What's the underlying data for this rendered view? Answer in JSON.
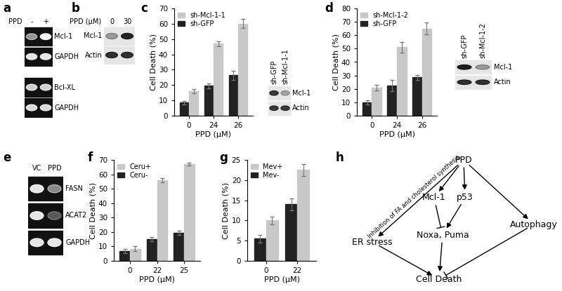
{
  "chart_data": [
    {
      "type": "bar",
      "panel_label": "c",
      "xlabel": "PPD (μM)",
      "ylabel": "Cell Death (%)",
      "categories": [
        "0",
        "24",
        "26"
      ],
      "series": [
        {
          "name": "sh-GFP",
          "color": "#222222",
          "values": [
            8.5,
            19.5,
            26.5
          ],
          "errors": [
            1,
            1.5,
            3
          ]
        },
        {
          "name": "sh-Mcl-1-1",
          "color": "#c8c8c8",
          "values": [
            16,
            47,
            60
          ],
          "errors": [
            1.5,
            1.5,
            3
          ]
        }
      ],
      "ylim": [
        0,
        70
      ],
      "yticks": [
        0,
        10,
        20,
        30,
        40,
        50,
        60,
        70
      ],
      "legend": "upper left"
    },
    {
      "type": "bar",
      "panel_label": "d",
      "xlabel": "PPD (μM)",
      "ylabel": "Cell Death (%)",
      "categories": [
        "0",
        "24",
        "26"
      ],
      "series": [
        {
          "name": "sh-GFP",
          "color": "#222222",
          "values": [
            10,
            22.5,
            28.5
          ],
          "errors": [
            1.5,
            4,
            2
          ]
        },
        {
          "name": "sh-Mcl-1-2",
          "color": "#c8c8c8",
          "values": [
            21,
            51,
            65
          ],
          "errors": [
            2,
            4,
            4.5
          ]
        }
      ],
      "ylim": [
        0,
        80
      ],
      "yticks": [
        0,
        10,
        20,
        30,
        40,
        50,
        60,
        70,
        80
      ],
      "legend": "upper left"
    },
    {
      "type": "bar",
      "panel_label": "f",
      "xlabel": "PPD (μM)",
      "ylabel": "Cell Death (%)",
      "categories": [
        "0",
        "22",
        "25"
      ],
      "series": [
        {
          "name": "Ceru-",
          "color": "#222222",
          "values": [
            7,
            15,
            19.5
          ],
          "errors": [
            1.5,
            1.5,
            1.5
          ]
        },
        {
          "name": "Ceru+",
          "color": "#c8c8c8",
          "values": [
            8.5,
            56,
            67
          ],
          "errors": [
            1.5,
            1.5,
            1
          ]
        }
      ],
      "ylim": [
        0,
        70
      ],
      "yticks": [
        0,
        10,
        20,
        30,
        40,
        50,
        60,
        70
      ],
      "legend": "upper left"
    },
    {
      "type": "bar",
      "panel_label": "g",
      "xlabel": "PPD (μM)",
      "ylabel": "Cell Death (%)",
      "categories": [
        "0",
        "22"
      ],
      "series": [
        {
          "name": "Mev-",
          "color": "#222222",
          "values": [
            5.5,
            14
          ],
          "errors": [
            1,
            1.5
          ]
        },
        {
          "name": "Mev+",
          "color": "#c8c8c8",
          "values": [
            10,
            22.5
          ],
          "errors": [
            1,
            1.5
          ]
        }
      ],
      "ylim": [
        0,
        25
      ],
      "yticks": [
        0,
        5,
        10,
        15,
        20,
        25
      ],
      "legend": "upper left"
    }
  ],
  "figure": {
    "a": {
      "panel_label": "a",
      "header": "PPD",
      "lanes": [
        "-",
        "+"
      ],
      "blocks": [
        [
          {
            "name": "Mcl-1",
            "intensity": [
              0.55,
              0.95
            ]
          },
          {
            "name": "GAPDH",
            "intensity": [
              0.9,
              0.9
            ]
          }
        ],
        [
          {
            "name": "Bcl-XL",
            "intensity": [
              0.8,
              0.8
            ]
          },
          {
            "name": "GAPDH",
            "intensity": [
              0.85,
              0.85
            ]
          }
        ]
      ]
    },
    "b": {
      "panel_label": "b",
      "header": "PPD (μM)",
      "lanes": [
        "0",
        "30"
      ],
      "rows": [
        {
          "name": "Mcl-1",
          "intensity": [
            0.35,
            0.9
          ]
        },
        {
          "name": "Actin",
          "intensity": [
            0.85,
            0.85
          ]
        }
      ]
    },
    "c_blot": {
      "lanes": [
        "sh-GFP",
        "sh-Mcl-1-1"
      ],
      "rows": [
        {
          "name": "Mcl-1",
          "intensity": [
            0.8,
            0.3
          ]
        },
        {
          "name": "Actin",
          "intensity": [
            0.8,
            0.8
          ]
        }
      ]
    },
    "d_blot": {
      "lanes": [
        "sh-GFP",
        "sh-Mcl-1-2"
      ],
      "rows": [
        {
          "name": "Mcl-1",
          "intensity": [
            0.95,
            0.35
          ]
        },
        {
          "name": "Actin",
          "intensity": [
            0.85,
            0.85
          ]
        }
      ]
    },
    "e": {
      "panel_label": "e",
      "lanes": [
        "VC",
        "PPD"
      ],
      "rows": [
        {
          "name": "FASN",
          "intensity": [
            0.9,
            0.5
          ]
        },
        {
          "name": "ACAT2",
          "intensity": [
            0.9,
            0.3
          ]
        },
        {
          "name": "GAPDH",
          "intensity": [
            0.9,
            0.9
          ]
        }
      ]
    },
    "h": {
      "panel_label": "h",
      "nodes": [
        "PPD",
        "Mcl-1",
        "p53",
        "ER stress",
        "Noxa, Puma",
        "Autophagy",
        "Cell Death"
      ],
      "edges": [
        {
          "from": 0,
          "to": 3,
          "type": "arrow",
          "label": "Inhibition of FA and cholesterol synthesis"
        },
        {
          "from": 0,
          "to": 1,
          "type": "arrow"
        },
        {
          "from": 0,
          "to": 2,
          "type": "arrow"
        },
        {
          "from": 0,
          "to": 5,
          "type": "arrow"
        },
        {
          "from": 1,
          "to": 4,
          "type": "inhibit"
        },
        {
          "from": 2,
          "to": 4,
          "type": "arrow"
        },
        {
          "from": 4,
          "to": 6,
          "type": "arrow"
        },
        {
          "from": 3,
          "to": 6,
          "type": "arrow"
        },
        {
          "from": 5,
          "to": 6,
          "type": "inhibit"
        }
      ]
    }
  }
}
